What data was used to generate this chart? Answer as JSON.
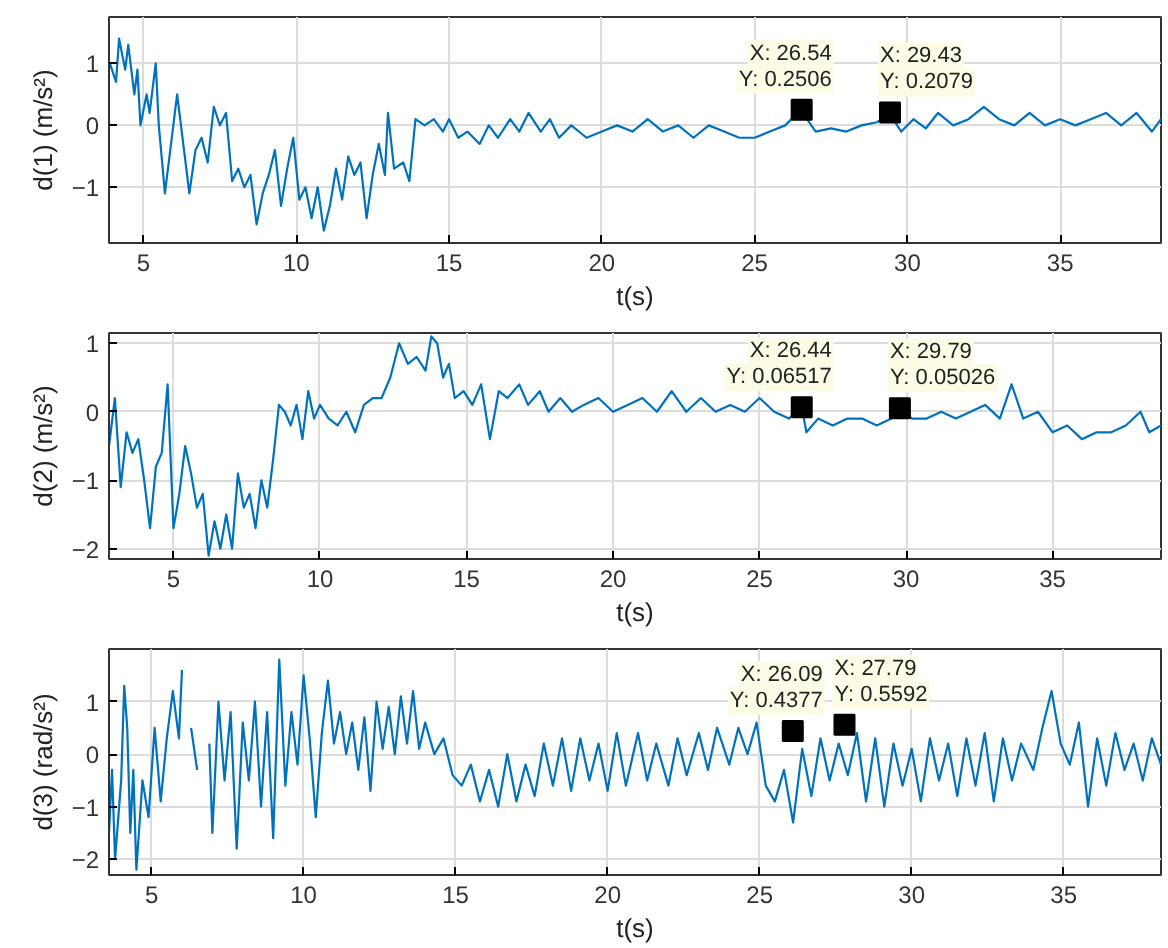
{
  "chart_data": [
    {
      "type": "line",
      "xlabel": "t(s)",
      "ylabel": "d(1) (m/s²)",
      "xlim": [
        3.87,
        38.3
      ],
      "ylim": [
        -1.9,
        1.75
      ],
      "xticks": [
        5,
        10,
        15,
        20,
        25,
        30,
        35
      ],
      "yticks": [
        -1,
        0,
        1
      ],
      "grid": true,
      "marker": "none",
      "line_style": "solid",
      "series": [
        {
          "color": "#0072bd",
          "x": [
            3.9,
            4.1,
            4.2,
            4.4,
            4.5,
            4.7,
            4.8,
            4.9,
            5.1,
            5.2,
            5.4,
            5.5,
            5.7,
            5.9,
            6.1,
            6.3,
            6.5,
            6.7,
            6.9,
            7.1,
            7.3,
            7.5,
            7.7,
            7.9,
            8.1,
            8.3,
            8.5,
            8.7,
            8.9,
            9.1,
            9.3,
            9.5,
            9.7,
            9.9,
            10.1,
            10.3,
            10.5,
            10.7,
            10.9,
            11.1,
            11.3,
            11.5,
            11.7,
            11.9,
            12.1,
            12.3,
            12.5,
            12.7,
            12.9,
            13.0,
            13.2,
            13.5,
            13.7,
            13.9,
            14.2,
            14.5,
            14.8,
            15.0,
            15.3,
            15.6,
            16.0,
            16.3,
            16.6,
            17.0,
            17.3,
            17.6,
            18.0,
            18.3,
            18.6,
            19.0,
            19.5,
            20.0,
            20.5,
            21.0,
            21.5,
            22.0,
            22.5,
            23.0,
            23.5,
            24.0,
            24.5,
            25.0,
            25.5,
            26.0,
            26.5,
            27.0,
            27.5,
            28.0,
            28.5,
            29.0,
            29.4,
            29.8,
            30.2,
            30.6,
            31.0,
            31.5,
            32.0,
            32.5,
            33.0,
            33.5,
            34.0,
            34.5,
            35.0,
            35.5,
            36.0,
            36.5,
            37.0,
            37.5,
            38.0,
            38.3
          ],
          "values": [
            1.0,
            0.7,
            1.4,
            0.9,
            1.3,
            0.5,
            0.9,
            0.0,
            0.5,
            0.2,
            1.0,
            0.0,
            -1.1,
            -0.3,
            0.5,
            -0.3,
            -1.1,
            -0.4,
            -0.2,
            -0.6,
            0.3,
            0.0,
            0.2,
            -0.9,
            -0.7,
            -1.0,
            -0.8,
            -1.6,
            -1.1,
            -0.8,
            -0.4,
            -1.3,
            -0.7,
            -0.2,
            -1.2,
            -1.0,
            -1.5,
            -1.0,
            -1.7,
            -1.3,
            -0.7,
            -1.2,
            -0.5,
            -0.8,
            -0.6,
            -1.5,
            -0.8,
            -0.3,
            -0.8,
            0.2,
            -0.7,
            -0.6,
            -0.9,
            0.1,
            0.0,
            0.1,
            -0.1,
            0.1,
            -0.2,
            -0.1,
            -0.3,
            0.0,
            -0.2,
            0.1,
            -0.1,
            0.2,
            -0.1,
            0.1,
            -0.2,
            0.0,
            -0.2,
            -0.1,
            0.0,
            -0.1,
            0.1,
            -0.1,
            0.0,
            -0.2,
            0.0,
            -0.1,
            -0.2,
            -0.2,
            -0.1,
            0.0,
            0.25,
            -0.1,
            -0.05,
            -0.1,
            0.0,
            0.05,
            0.2,
            -0.1,
            0.1,
            -0.05,
            0.2,
            0.0,
            0.1,
            0.3,
            0.1,
            0.0,
            0.2,
            0.0,
            0.1,
            0.0,
            0.1,
            0.2,
            0.0,
            0.2,
            -0.1,
            0.1
          ]
        }
      ],
      "annotations": [
        {
          "text": "X: 26.54\nY: 0.2506",
          "x": 26.54,
          "y": 0.2506
        },
        {
          "text": "X: 29.43\nY: 0.2079",
          "x": 29.43,
          "y": 0.2079
        }
      ]
    },
    {
      "type": "line",
      "xlabel": "t(s)",
      "ylabel": "d(2) (m/s²)",
      "xlim": [
        2.8,
        38.7
      ],
      "ylim": [
        -2.15,
        1.15
      ],
      "xticks": [
        5,
        10,
        15,
        20,
        25,
        30,
        35
      ],
      "yticks": [
        -2,
        -1,
        0,
        1
      ],
      "grid": true,
      "marker": "none",
      "line_style": "solid",
      "series": [
        {
          "color": "#0072bd",
          "x": [
            2.8,
            3.0,
            3.2,
            3.4,
            3.6,
            3.8,
            4.0,
            4.2,
            4.4,
            4.6,
            4.8,
            5.0,
            5.2,
            5.4,
            5.6,
            5.8,
            6.0,
            6.2,
            6.4,
            6.6,
            6.8,
            7.0,
            7.2,
            7.4,
            7.6,
            7.8,
            8.0,
            8.2,
            8.4,
            8.6,
            8.8,
            9.0,
            9.2,
            9.4,
            9.6,
            9.8,
            10.0,
            10.3,
            10.6,
            10.9,
            11.2,
            11.5,
            11.8,
            12.1,
            12.4,
            12.7,
            13.0,
            13.3,
            13.6,
            13.8,
            14.0,
            14.2,
            14.4,
            14.6,
            14.9,
            15.2,
            15.5,
            15.8,
            16.1,
            16.4,
            16.8,
            17.1,
            17.5,
            17.8,
            18.2,
            18.6,
            19.0,
            19.5,
            20.0,
            20.5,
            21.0,
            21.5,
            22.0,
            22.5,
            23.0,
            23.5,
            24.0,
            24.5,
            25.0,
            25.5,
            26.0,
            26.44,
            26.6,
            27.0,
            27.5,
            28.0,
            28.5,
            29.0,
            29.5,
            29.79,
            30.2,
            30.7,
            31.2,
            31.7,
            32.2,
            32.7,
            33.2,
            33.6,
            34.0,
            34.5,
            35.0,
            35.5,
            36.0,
            36.5,
            37.0,
            37.5,
            38.0,
            38.3,
            38.7
          ],
          "values": [
            -0.5,
            0.2,
            -1.1,
            -0.3,
            -0.6,
            -0.4,
            -1.0,
            -1.7,
            -0.8,
            -0.6,
            0.4,
            -1.7,
            -1.2,
            -0.5,
            -0.9,
            -1.4,
            -1.2,
            -2.1,
            -1.6,
            -2.0,
            -1.5,
            -2.0,
            -0.9,
            -1.4,
            -1.2,
            -1.7,
            -1.0,
            -1.4,
            -0.7,
            0.1,
            0.0,
            -0.2,
            0.1,
            -0.4,
            0.3,
            -0.1,
            0.1,
            -0.1,
            -0.2,
            0.0,
            -0.3,
            0.1,
            0.2,
            0.2,
            0.5,
            1.0,
            0.7,
            0.8,
            0.6,
            1.1,
            1.0,
            0.5,
            0.7,
            0.2,
            0.3,
            0.1,
            0.4,
            -0.4,
            0.3,
            0.2,
            0.4,
            0.1,
            0.3,
            0.0,
            0.2,
            0.0,
            0.1,
            0.2,
            0.0,
            0.1,
            0.2,
            0.0,
            0.3,
            0.0,
            0.2,
            0.0,
            0.1,
            0.0,
            0.2,
            0.0,
            -0.1,
            0.07,
            -0.3,
            -0.1,
            -0.2,
            -0.1,
            -0.1,
            -0.2,
            -0.1,
            0.05,
            -0.1,
            -0.1,
            0.0,
            -0.1,
            0.0,
            0.1,
            -0.1,
            0.4,
            -0.1,
            0.0,
            -0.3,
            -0.2,
            -0.4,
            -0.3,
            -0.3,
            -0.2,
            0.0,
            -0.3,
            -0.2
          ]
        }
      ],
      "annotations": [
        {
          "text": "X: 26.44\nY: 0.06517",
          "x": 26.44,
          "y": 0.06517
        },
        {
          "text": "X: 29.79\nY: 0.05026",
          "x": 29.79,
          "y": 0.05026
        }
      ]
    },
    {
      "type": "line",
      "xlabel": "t(s)",
      "ylabel": "d(3) (rad/s²)",
      "xlim": [
        3.6,
        38.2
      ],
      "ylim": [
        -2.3,
        2.0
      ],
      "xticks": [
        5,
        10,
        15,
        20,
        25,
        30,
        35
      ],
      "yticks": [
        -2,
        -1,
        0,
        1
      ],
      "grid": true,
      "marker": "none",
      "line_style": "solid",
      "series": [
        {
          "color": "#0072bd",
          "x": [
            3.6,
            3.7,
            3.8,
            4.0,
            4.1,
            4.2,
            4.3,
            4.4,
            4.5,
            4.7,
            4.9,
            5.1,
            5.3,
            5.5,
            5.7,
            5.9,
            6.0,
            6.1,
            6.3,
            6.5,
            6.7,
            6.9,
            7.0,
            7.2,
            7.4,
            7.6,
            7.8,
            8.0,
            8.2,
            8.4,
            8.6,
            8.8,
            9.0,
            9.2,
            9.4,
            9.6,
            9.8,
            10.0,
            10.2,
            10.4,
            10.6,
            10.8,
            11.0,
            11.2,
            11.4,
            11.6,
            11.8,
            12.0,
            12.2,
            12.4,
            12.6,
            12.8,
            13.0,
            13.2,
            13.4,
            13.6,
            13.8,
            14.0,
            14.3,
            14.6,
            14.9,
            15.2,
            15.5,
            15.8,
            16.1,
            16.4,
            16.7,
            17.0,
            17.3,
            17.6,
            17.9,
            18.2,
            18.5,
            18.8,
            19.1,
            19.4,
            19.7,
            20.0,
            20.3,
            20.6,
            21.0,
            21.3,
            21.6,
            22.0,
            22.3,
            22.6,
            23.0,
            23.3,
            23.6,
            24.0,
            24.3,
            24.6,
            24.9,
            25.2,
            25.5,
            25.8,
            26.1,
            26.4,
            26.7,
            27.0,
            27.3,
            27.6,
            27.9,
            28.2,
            28.5,
            28.8,
            29.1,
            29.4,
            29.7,
            30.0,
            30.3,
            30.6,
            30.9,
            31.2,
            31.5,
            31.8,
            32.1,
            32.4,
            32.7,
            33.0,
            33.3,
            33.6,
            34.0,
            34.3,
            34.6,
            34.9,
            35.2,
            35.5,
            35.8,
            36.1,
            36.4,
            36.7,
            37.0,
            37.3,
            37.6,
            37.9,
            38.2
          ],
          "values": [
            -1.5,
            -0.3,
            -2.0,
            -0.5,
            1.3,
            0.5,
            -1.5,
            -0.3,
            -2.2,
            -0.5,
            -1.2,
            0.5,
            -0.9,
            0.3,
            1.2,
            0.3,
            1.6,
            null,
            0.5,
            -0.3,
            null,
            0.2,
            -1.5,
            1.0,
            -0.5,
            0.8,
            -1.8,
            0.6,
            -0.5,
            1.0,
            -1.0,
            0.8,
            -1.6,
            1.8,
            -0.6,
            0.8,
            -0.2,
            1.5,
            0.3,
            -1.2,
            0.4,
            1.4,
            0.2,
            0.8,
            0.0,
            0.6,
            -0.3,
            0.7,
            -0.7,
            1.0,
            0.1,
            0.9,
            0.0,
            1.1,
            0.2,
            1.2,
            0.1,
            0.6,
            0.0,
            0.3,
            -0.4,
            -0.6,
            -0.2,
            -0.9,
            -0.3,
            -1.0,
            0.0,
            -0.9,
            -0.2,
            -0.8,
            0.2,
            -0.6,
            0.3,
            -0.7,
            0.3,
            -0.5,
            0.2,
            -0.7,
            0.4,
            -0.6,
            0.4,
            -0.5,
            0.2,
            -0.6,
            0.3,
            -0.4,
            0.4,
            -0.3,
            0.5,
            -0.2,
            0.5,
            0.0,
            0.6,
            -0.6,
            -0.9,
            -0.3,
            -1.3,
            0.1,
            -0.8,
            0.3,
            -0.5,
            0.2,
            -0.4,
            0.4,
            -0.9,
            0.3,
            -1.0,
            0.2,
            -0.6,
            0.1,
            -0.9,
            0.3,
            -0.5,
            0.2,
            -0.8,
            0.3,
            -0.6,
            0.4,
            -0.9,
            0.3,
            -0.5,
            0.2,
            -0.3,
            0.5,
            1.2,
            0.2,
            -0.2,
            0.6,
            -1.0,
            0.3,
            -0.6,
            0.4,
            -0.3,
            0.2,
            -0.5,
            0.3,
            -0.2
          ]
        }
      ],
      "annotations": [
        {
          "text": "X: 26.09\nY: 0.4377",
          "x": 26.09,
          "y": 0.4377
        },
        {
          "text": "X: 27.79\nY: 0.5592",
          "x": 27.79,
          "y": 0.5592
        }
      ]
    }
  ]
}
